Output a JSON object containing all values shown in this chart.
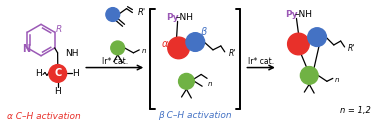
{
  "background_color": "#ffffff",
  "alpha_label": "α C–H activation",
  "beta_label": "β C–H activation",
  "n_label": "n = 1,2",
  "ir_cat": "Ir* cat.",
  "alpha_color": "#e8302a",
  "beta_color": "#4472c4",
  "green_color": "#70b244",
  "purple_color": "#9b59b6",
  "red_color": "#e8302a",
  "blue_color": "#4472c4",
  "py_color": "#9b59b6",
  "label_fontsize": 6.5,
  "small_fontsize": 6.0
}
